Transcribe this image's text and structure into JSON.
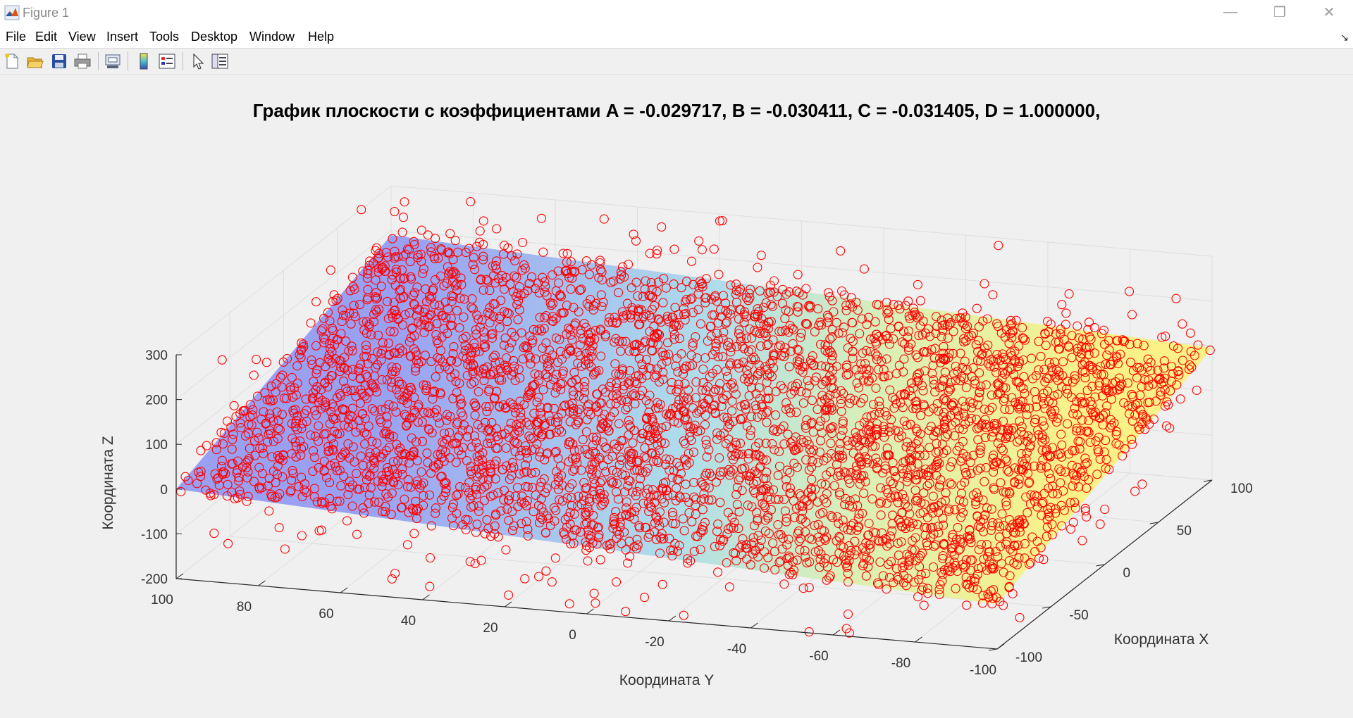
{
  "window": {
    "title": "Figure 1",
    "controls": [
      "—",
      "❐",
      "✕"
    ]
  },
  "menu": [
    "File",
    "Edit",
    "View",
    "Insert",
    "Tools",
    "Desktop",
    "Window",
    "Help"
  ],
  "toolbar": {
    "buttons": [
      "new-figure-icon",
      "open-file-icon",
      "save-icon",
      "print-icon",
      "link-plot-icon",
      "insert-colorbar-icon",
      "insert-legend-icon",
      "edit-plot-icon",
      "property-inspector-icon"
    ]
  },
  "colors": {
    "marker": "#ff0000",
    "plane_blue": "#9aa0f0",
    "plane_cyan": "#a8dfe0",
    "plane_yellow": "#fbf28a"
  },
  "plot": {
    "title": "График плоскости с коэффициентами A = -0.029717, B = -0.030411, C = -0.031405, D = 1.000000,"
  },
  "chart_data": {
    "type": "scatter",
    "title": "График плоскости с коэффициентами A = -0.029717, B = -0.030411, C = -0.031405, D = 1.000000,",
    "xlabel": "Координата X",
    "ylabel": "Координата Y",
    "zlabel": "Координата Z",
    "xlim": [
      -100,
      100
    ],
    "ylim": [
      -100,
      100
    ],
    "zlim": [
      -200,
      300
    ],
    "x_ticks": [
      "-100",
      "-50",
      "0",
      "50",
      "100"
    ],
    "y_ticks": [
      "100",
      "80",
      "60",
      "40",
      "20",
      "0",
      "-20",
      "-40",
      "-60",
      "-80",
      "-100"
    ],
    "z_ticks": [
      "300",
      "200",
      "100",
      "0",
      "-100",
      "-200"
    ],
    "grid": true,
    "surface": {
      "equation_coeffs": {
        "A": -0.029717,
        "B": -0.030411,
        "C": -0.031405,
        "D": 1.0
      },
      "z_corners": [
        {
          "x": -100,
          "y": 100,
          "z": 0
        },
        {
          "x": -100,
          "y": -100,
          "z": -100
        },
        {
          "x": 100,
          "y": 100,
          "z": 190
        },
        {
          "x": 100,
          "y": -100,
          "z": 95
        }
      ]
    },
    "series": [
      {
        "marker": "circle",
        "color": "#ff0000",
        "count_approx": 10000,
        "description_points": "noisy samples around the plane"
      }
    ]
  }
}
